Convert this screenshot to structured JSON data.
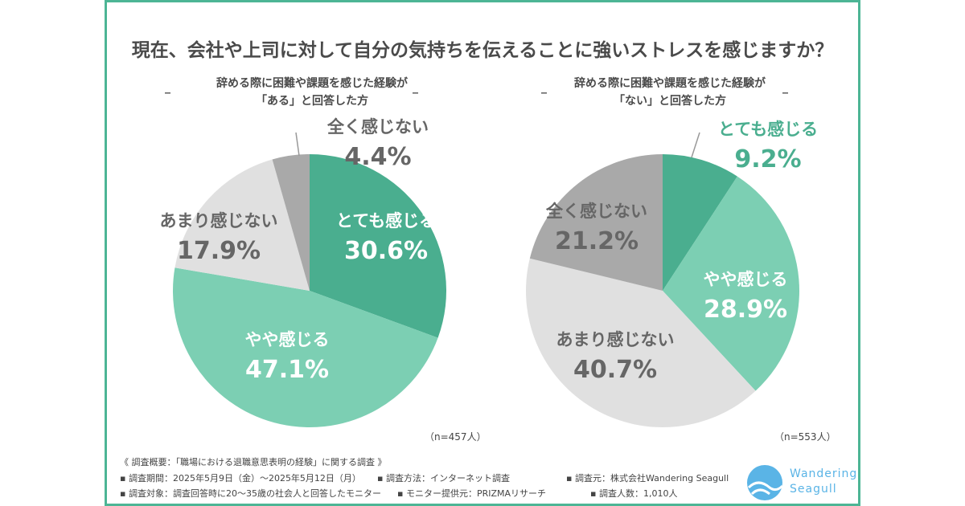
{
  "title": "現在、会社や上司に対して自分の気持ちを伝えることに強いストレスを感じますか？",
  "colors": {
    "border": "#4db595",
    "very": "#4aae8f",
    "somewhat": "#7ccfb3",
    "notmuch": "#e0e0e0",
    "notatall": "#a9a9a9",
    "text": "#555555"
  },
  "chart_data": [
    {
      "type": "pie",
      "title": "辞める際に困難や課題を感じた経験が「ある」と回答した方",
      "title_line1": "辞める際に困難や課題を感じた経験が",
      "title_line2": "「ある」と回答した方",
      "n": "（n=457人）",
      "slices": [
        {
          "label": "とても感じる",
          "value": 30.6,
          "text": "30.6%"
        },
        {
          "label": "やや感じる",
          "value": 47.1,
          "text": "47.1%"
        },
        {
          "label": "あまり感じない",
          "value": 17.9,
          "text": "17.9%"
        },
        {
          "label": "全く感じない",
          "value": 4.4,
          "text": "4.4%"
        }
      ]
    },
    {
      "type": "pie",
      "title": "辞める際に困難や課題を感じた経験が「ない」と回答した方",
      "title_line1": "辞める際に困難や課題を感じた経験が",
      "title_line2": "「ない」と回答した方",
      "n": "（n=553人）",
      "slices": [
        {
          "label": "とても感じる",
          "value": 9.2,
          "text": "9.2%"
        },
        {
          "label": "やや感じる",
          "value": 28.9,
          "text": "28.9%"
        },
        {
          "label": "あまり感じない",
          "value": 40.7,
          "text": "40.7%"
        },
        {
          "label": "全く感じない",
          "value": 21.2,
          "text": "21.2%"
        }
      ]
    }
  ],
  "footer": {
    "heading": "《 調査概要：「職場における退職意思表明の経験」に関する調査 》",
    "period": "▪ 調査期間：2025年5月9日（金）～2025年5月12日（月）",
    "method": "▪ 調査方法：インターネット調査",
    "source": "▪ 調査元：株式会社Wandering Seagull",
    "target": "▪ 調査対象：調査回答時に20～35歳の社会人と回答したモニター",
    "provider": "▪ モニター提供元：PRIZMAリサーチ",
    "count": "▪ 調査人数：1,010人"
  },
  "logo": {
    "line1": "Wandering",
    "line2": "Seagull"
  }
}
